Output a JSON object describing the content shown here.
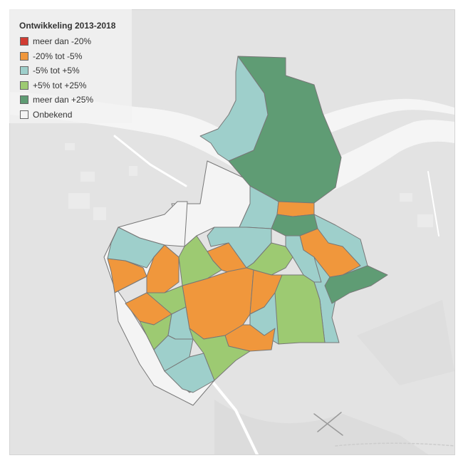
{
  "legend": {
    "title": "Ontwikkeling 2013-2018",
    "items": [
      {
        "label": "meer dan -20%",
        "color": "#d13b32"
      },
      {
        "label": "-20% tot -5%",
        "color": "#f0973c"
      },
      {
        "label": "-5% tot +5%",
        "color": "#9ecfcb"
      },
      {
        "label": "+5% tot +25%",
        "color": "#9dca72"
      },
      {
        "label": "meer dan +25%",
        "color": "#5f9c74"
      },
      {
        "label": "Onbekend",
        "color": "#f4f4f4"
      }
    ]
  },
  "colors": {
    "map_background": "#e3e3e3",
    "river": "#f7f7f7",
    "region_border": "#777777"
  }
}
